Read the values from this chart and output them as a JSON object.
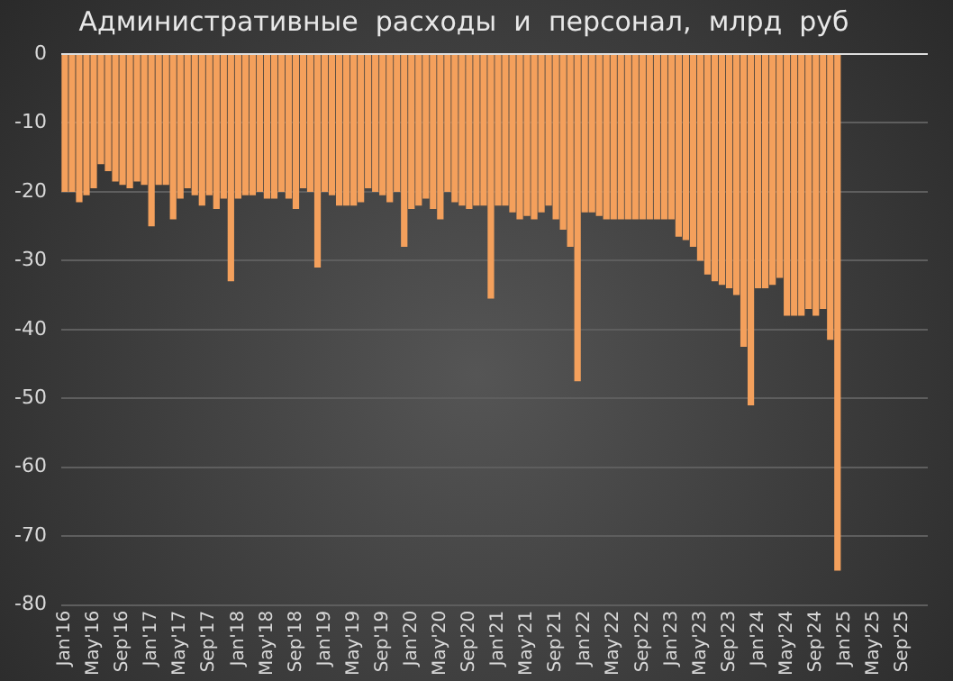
{
  "chart_data": {
    "type": "bar",
    "title": "Административные  расходы  и  персонал,  млрд  руб",
    "categories": [
      "Jan'16",
      null,
      null,
      null,
      "May'16",
      null,
      null,
      null,
      "Sep'16",
      null,
      null,
      null,
      "Jan'17",
      null,
      null,
      null,
      "May'17",
      null,
      null,
      null,
      "Sep'17",
      null,
      null,
      null,
      "Jan'18",
      null,
      null,
      null,
      "May'18",
      null,
      null,
      null,
      "Sep'18",
      null,
      null,
      null,
      "Jan'19",
      null,
      null,
      null,
      "May'19",
      null,
      null,
      null,
      "Sep'19",
      null,
      null,
      null,
      "Jan'20",
      null,
      null,
      null,
      "May'20",
      null,
      null,
      null,
      "Sep'20",
      null,
      null,
      null,
      "Jan'21",
      null,
      null,
      null,
      "May'21",
      null,
      null,
      null,
      "Sep'21",
      null,
      null,
      null,
      "Jan'22",
      null,
      null,
      null,
      "May'22",
      null,
      null,
      null,
      "Sep'22",
      null,
      null,
      null,
      "Jan'23",
      null,
      null,
      null,
      "May'23",
      null,
      null,
      null,
      "Sep'23",
      null,
      null,
      null,
      "Jan'24",
      null,
      null,
      null,
      "May'24",
      null,
      null,
      null,
      "Sep'24",
      null,
      null,
      null,
      "Jan'25",
      null,
      null,
      null,
      "May'25",
      null,
      null,
      null,
      "Sep'25",
      null,
      null,
      null
    ],
    "values": [
      -20,
      -20,
      -21.5,
      -20.5,
      -19.5,
      -16,
      -17,
      -18.5,
      -19,
      -19.5,
      -18.5,
      -19,
      -25,
      -19,
      -19,
      -24,
      -21,
      -19.5,
      -20.5,
      -22,
      -20.5,
      -22.5,
      -21,
      -33,
      -21,
      -20.5,
      -20.5,
      -20,
      -21,
      -21,
      -20,
      -21,
      -22.5,
      -19.5,
      -20,
      -31,
      -20,
      -20.5,
      -22,
      -22,
      -22,
      -21.5,
      -19.5,
      -20,
      -20.5,
      -21.5,
      -20,
      -28,
      -22.5,
      -22,
      -21,
      -22.5,
      -24,
      -20,
      -21.5,
      -22,
      -22.5,
      -22,
      -22,
      -35.5,
      -22,
      -22,
      -23,
      -24,
      -23.5,
      -24,
      -23,
      -22,
      -24,
      -25.5,
      -28,
      -47.5,
      -23,
      -23,
      -23.5,
      -24,
      -24,
      -24,
      -24,
      -24,
      -24,
      -24,
      -24,
      -24,
      -24,
      -26.5,
      -27,
      -28,
      -30,
      -32,
      -33,
      -33.5,
      -34,
      -35,
      -42.5,
      -51,
      -34,
      -34,
      -33.5,
      -32.5,
      -38,
      -38,
      -38,
      -37,
      -38,
      -37,
      -41.5,
      -75,
      null,
      null,
      null,
      null,
      null,
      null,
      null,
      null,
      null,
      null,
      null,
      null
    ],
    "color": "#f4a05c",
    "ylim": [
      -80,
      0
    ],
    "yticks": [
      -80,
      -70,
      -60,
      -50,
      -40,
      -30,
      -20,
      -10,
      0
    ],
    "grid": "y"
  }
}
